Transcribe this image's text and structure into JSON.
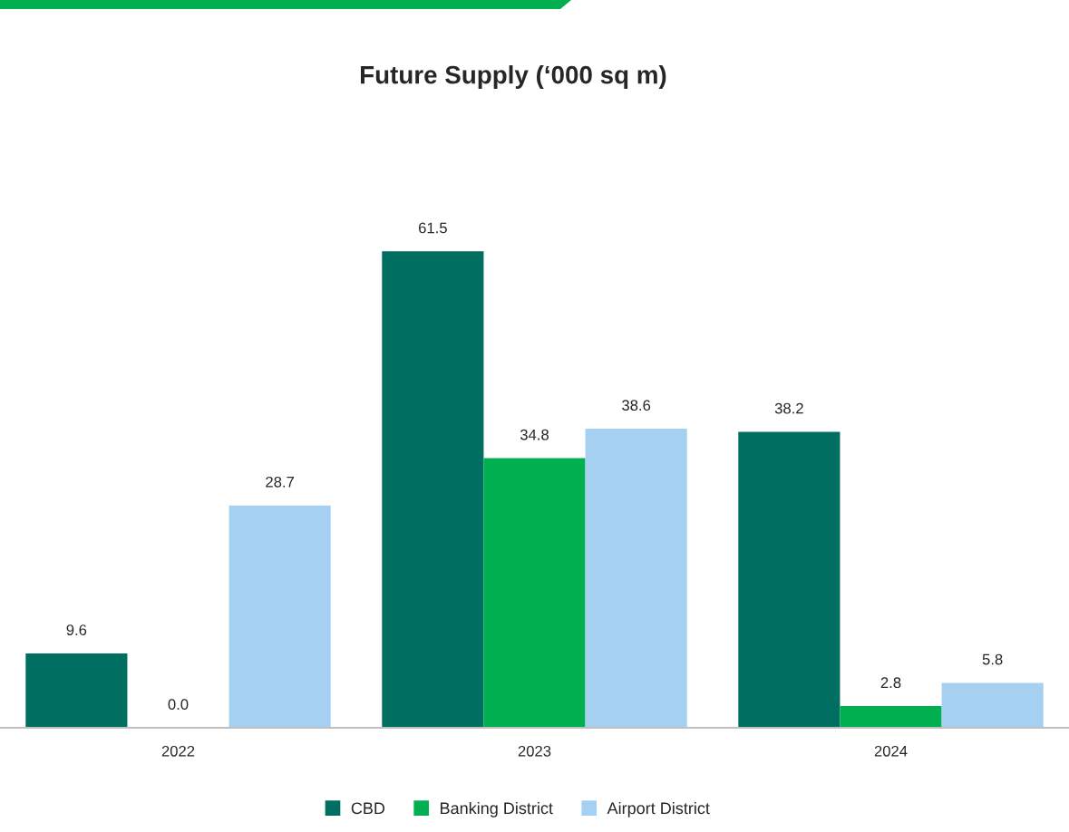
{
  "chart_data": {
    "type": "bar",
    "title": "Future Supply (‘000 sq m)",
    "categories": [
      "2022",
      "2023",
      "2024"
    ],
    "series": [
      {
        "name": "CBD",
        "color": "#006e60",
        "values": [
          9.6,
          61.5,
          38.2
        ],
        "value_labels": [
          "9.6",
          "61.5",
          "38.2"
        ]
      },
      {
        "name": "Banking District",
        "color": "#00b050",
        "values": [
          0.0,
          34.8,
          2.8
        ],
        "value_labels": [
          "0.0",
          "34.8",
          "2.8"
        ]
      },
      {
        "name": "Airport District",
        "color": "#a6d0f2",
        "values": [
          28.7,
          38.6,
          5.8
        ],
        "value_labels": [
          "28.7",
          "38.6",
          "5.8"
        ]
      }
    ],
    "legend": "bottom",
    "grid": false,
    "tick_labels": "x"
  }
}
